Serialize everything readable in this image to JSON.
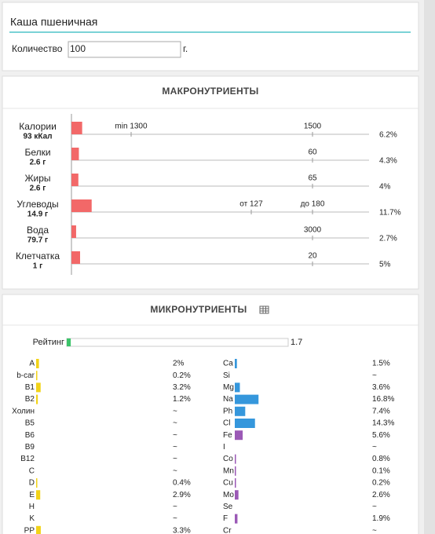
{
  "search": "Каша пшеничная",
  "quantity": {
    "label": "Количество",
    "value": "100",
    "unit": "г."
  },
  "macro": {
    "title": "МАКРОНУТРИЕНТЫ",
    "color": "#f26868",
    "rows": [
      {
        "name": "Калории",
        "amount": "93 кКал",
        "percent": 6.2,
        "percent_label": "6.2%",
        "marks": [
          "min 1300",
          "1500"
        ]
      },
      {
        "name": "Белки",
        "amount": "2.6 г",
        "percent": 4.3,
        "percent_label": "4.3%",
        "marks": [
          "60"
        ]
      },
      {
        "name": "Жиры",
        "amount": "2.6 г",
        "percent": 4,
        "percent_label": "4%",
        "marks": [
          "65"
        ]
      },
      {
        "name": "Углеводы",
        "amount": "14.9 г",
        "percent": 11.7,
        "percent_label": "11.7%",
        "marks": [
          "от 127",
          "до 180"
        ]
      },
      {
        "name": "Вода",
        "amount": "79.7 г",
        "percent": 2.7,
        "percent_label": "2.7%",
        "marks": [
          "3000"
        ]
      },
      {
        "name": "Клетчатка",
        "amount": "1 г",
        "percent": 5,
        "percent_label": "5%",
        "marks": [
          "20"
        ]
      }
    ]
  },
  "micro": {
    "title": "МИКРОНУТРИЕНТЫ",
    "rating": {
      "label": "Рейтинг",
      "value": 1.7,
      "color": "#3cc46a"
    },
    "left": {
      "color": "#f2d318",
      "items": [
        {
          "name": "A",
          "value": 2,
          "label": "2%"
        },
        {
          "name": "b-car",
          "value": 0.2,
          "label": "0.2%"
        },
        {
          "name": "B1",
          "value": 3.2,
          "label": "3.2%"
        },
        {
          "name": "B2",
          "value": 1.2,
          "label": "1.2%"
        },
        {
          "name": "Холин",
          "value": null,
          "label": "~"
        },
        {
          "name": "B5",
          "value": null,
          "label": "~"
        },
        {
          "name": "B6",
          "value": null,
          "label": "~"
        },
        {
          "name": "B9",
          "value": null,
          "label": "~"
        },
        {
          "name": "B12",
          "value": null,
          "label": "~"
        },
        {
          "name": "C",
          "value": null,
          "label": "~"
        },
        {
          "name": "D",
          "value": 0.4,
          "label": "0.4%"
        },
        {
          "name": "E",
          "value": 2.9,
          "label": "2.9%"
        },
        {
          "name": "H",
          "value": null,
          "label": "~"
        },
        {
          "name": "K",
          "value": null,
          "label": "~"
        },
        {
          "name": "PP",
          "value": 3.3,
          "label": "3.3%"
        }
      ]
    },
    "right": {
      "items": [
        {
          "name": "Ca",
          "value": 1.5,
          "label": "1.5%",
          "color": "#3597dc"
        },
        {
          "name": "Si",
          "value": null,
          "label": "~",
          "color": "#3597dc"
        },
        {
          "name": "Mg",
          "value": 3.6,
          "label": "3.6%",
          "color": "#3597dc"
        },
        {
          "name": "Na",
          "value": 16.8,
          "label": "16.8%",
          "color": "#3597dc"
        },
        {
          "name": "Ph",
          "value": 7.4,
          "label": "7.4%",
          "color": "#3597dc"
        },
        {
          "name": "Cl",
          "value": 14.3,
          "label": "14.3%",
          "color": "#3597dc"
        },
        {
          "name": "Fe",
          "value": 5.6,
          "label": "5.6%",
          "color": "#9b59b6"
        },
        {
          "name": "I",
          "value": null,
          "label": "~",
          "color": "#9b59b6"
        },
        {
          "name": "Co",
          "value": 0.8,
          "label": "0.8%",
          "color": "#9b59b6"
        },
        {
          "name": "Mn",
          "value": 0.1,
          "label": "0.1%",
          "color": "#9b59b6"
        },
        {
          "name": "Cu",
          "value": 0.2,
          "label": "0.2%",
          "color": "#9b59b6"
        },
        {
          "name": "Mo",
          "value": 2.6,
          "label": "2.6%",
          "color": "#9b59b6"
        },
        {
          "name": "Se",
          "value": null,
          "label": "~",
          "color": "#9b59b6"
        },
        {
          "name": "F",
          "value": 1.9,
          "label": "1.9%",
          "color": "#9b59b6"
        },
        {
          "name": "Cr",
          "value": null,
          "label": "~",
          "color": "#9b59b6"
        }
      ]
    }
  }
}
